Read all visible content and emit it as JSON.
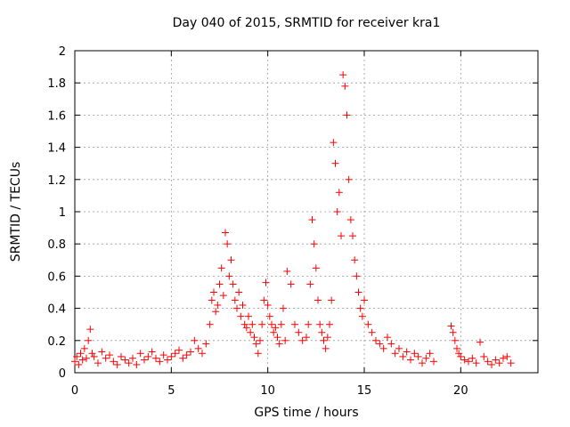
{
  "chart_data": {
    "type": "scatter",
    "title": "Day 040 of 2015, SRMTID for receiver kra1",
    "xlabel": "GPS time / hours",
    "ylabel": "SRMTID / TECUs",
    "xlim": [
      0,
      24
    ],
    "ylim": [
      0,
      2
    ],
    "xticks": [
      0,
      5,
      10,
      15,
      20
    ],
    "yticks": [
      0,
      0.2,
      0.4,
      0.6,
      0.8,
      1,
      1.2,
      1.4,
      1.6,
      1.8,
      2
    ],
    "xtick_labels": [
      "0",
      "5",
      "10",
      "15",
      "20"
    ],
    "ytick_labels": [
      "0",
      "0.2",
      "0.4",
      "0.6",
      "0.8",
      "1",
      "1.2",
      "1.4",
      "1.6",
      "1.8",
      "2"
    ],
    "grid": true,
    "marker": "+",
    "marker_color": "#ff0000",
    "series": [
      {
        "name": "SRMTID",
        "x": [
          0.0,
          0.1,
          0.2,
          0.3,
          0.4,
          0.5,
          0.6,
          0.7,
          0.8,
          0.9,
          1.0,
          1.2,
          1.4,
          1.6,
          1.8,
          2.0,
          2.2,
          2.4,
          2.6,
          2.8,
          3.0,
          3.2,
          3.4,
          3.6,
          3.8,
          4.0,
          4.2,
          4.4,
          4.6,
          4.8,
          5.0,
          5.2,
          5.4,
          5.6,
          5.8,
          6.0,
          6.2,
          6.4,
          6.6,
          6.8,
          7.0,
          7.1,
          7.2,
          7.3,
          7.4,
          7.5,
          7.6,
          7.7,
          7.8,
          7.9,
          8.0,
          8.1,
          8.2,
          8.3,
          8.4,
          8.5,
          8.6,
          8.7,
          8.8,
          8.9,
          9.0,
          9.1,
          9.2,
          9.3,
          9.4,
          9.5,
          9.6,
          9.7,
          9.8,
          9.9,
          10.0,
          10.1,
          10.2,
          10.3,
          10.4,
          10.5,
          10.6,
          10.7,
          10.8,
          10.9,
          11.0,
          11.2,
          11.4,
          11.6,
          11.8,
          12.0,
          12.1,
          12.2,
          12.3,
          12.4,
          12.5,
          12.6,
          12.7,
          12.8,
          12.9,
          13.0,
          13.1,
          13.2,
          13.3,
          13.4,
          13.5,
          13.6,
          13.7,
          13.8,
          13.9,
          14.0,
          14.1,
          14.2,
          14.3,
          14.4,
          14.5,
          14.6,
          14.7,
          14.8,
          14.9,
          15.0,
          15.2,
          15.4,
          15.6,
          15.8,
          16.0,
          16.2,
          16.4,
          16.6,
          16.8,
          17.0,
          17.2,
          17.4,
          17.6,
          17.8,
          18.0,
          18.2,
          18.4,
          18.6,
          19.5,
          19.6,
          19.7,
          19.8,
          19.9,
          20.0,
          20.2,
          20.4,
          20.6,
          20.8,
          21.0,
          21.2,
          21.4,
          21.6,
          21.8,
          22.0,
          22.2,
          22.4,
          22.6
        ],
        "y": [
          0.07,
          0.1,
          0.05,
          0.12,
          0.08,
          0.15,
          0.09,
          0.2,
          0.27,
          0.12,
          0.1,
          0.06,
          0.13,
          0.09,
          0.11,
          0.07,
          0.05,
          0.1,
          0.08,
          0.06,
          0.09,
          0.05,
          0.12,
          0.08,
          0.1,
          0.13,
          0.09,
          0.07,
          0.11,
          0.08,
          0.1,
          0.12,
          0.14,
          0.09,
          0.11,
          0.13,
          0.2,
          0.15,
          0.12,
          0.18,
          0.3,
          0.45,
          0.5,
          0.38,
          0.42,
          0.55,
          0.65,
          0.48,
          0.87,
          0.8,
          0.6,
          0.7,
          0.55,
          0.45,
          0.4,
          0.5,
          0.35,
          0.42,
          0.3,
          0.28,
          0.35,
          0.25,
          0.3,
          0.22,
          0.18,
          0.12,
          0.2,
          0.3,
          0.45,
          0.56,
          0.42,
          0.35,
          0.3,
          0.25,
          0.28,
          0.22,
          0.18,
          0.3,
          0.4,
          0.2,
          0.63,
          0.55,
          0.3,
          0.25,
          0.2,
          0.22,
          0.3,
          0.55,
          0.95,
          0.8,
          0.65,
          0.45,
          0.3,
          0.25,
          0.2,
          0.15,
          0.22,
          0.3,
          0.45,
          1.43,
          1.3,
          1.0,
          1.12,
          0.85,
          1.85,
          1.78,
          1.6,
          1.2,
          0.95,
          0.85,
          0.7,
          0.6,
          0.5,
          0.4,
          0.35,
          0.45,
          0.3,
          0.25,
          0.2,
          0.18,
          0.15,
          0.22,
          0.18,
          0.12,
          0.15,
          0.1,
          0.13,
          0.08,
          0.12,
          0.1,
          0.06,
          0.09,
          0.12,
          0.07,
          0.29,
          0.25,
          0.2,
          0.15,
          0.12,
          0.1,
          0.08,
          0.07,
          0.09,
          0.06,
          0.19,
          0.1,
          0.07,
          0.05,
          0.08,
          0.06,
          0.09,
          0.1,
          0.06
        ]
      }
    ]
  }
}
